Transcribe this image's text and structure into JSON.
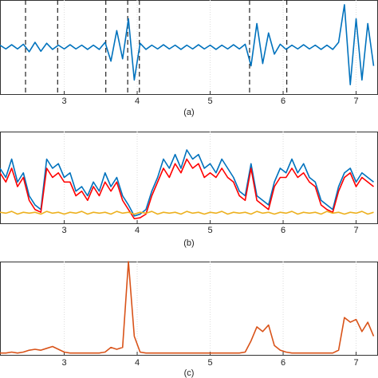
{
  "chart_data": [
    {
      "type": "line",
      "title": "(a)",
      "x": [
        2.12,
        2.2,
        2.28,
        2.36,
        2.44,
        2.52,
        2.6,
        2.68,
        2.76,
        2.84,
        2.92,
        3.0,
        3.08,
        3.16,
        3.24,
        3.32,
        3.4,
        3.48,
        3.56,
        3.64,
        3.72,
        3.8,
        3.88,
        3.96,
        4.04,
        4.12,
        4.2,
        4.28,
        4.36,
        4.44,
        4.52,
        4.6,
        4.68,
        4.76,
        4.84,
        4.92,
        5.0,
        5.08,
        5.16,
        5.24,
        5.32,
        5.4,
        5.48,
        5.56,
        5.64,
        5.72,
        5.8,
        5.88,
        5.96,
        6.04,
        6.12,
        6.2,
        6.28,
        6.36,
        6.44,
        6.52,
        6.6,
        6.68,
        6.76,
        6.84,
        6.92,
        7.0,
        7.08,
        7.16,
        7.24
      ],
      "series": [
        {
          "color": "#0072bd",
          "values": [
            0.04,
            -0.04,
            0.05,
            -0.04,
            0.06,
            -0.1,
            0.1,
            -0.09,
            0.08,
            -0.05,
            0.04,
            -0.04,
            0.05,
            -0.04,
            0.04,
            -0.05,
            0.04,
            -0.05,
            0.1,
            -0.3,
            0.35,
            -0.25,
            0.6,
            -0.7,
            0.08,
            -0.05,
            0.04,
            -0.04,
            0.05,
            -0.04,
            0.04,
            -0.05,
            0.04,
            -0.04,
            0.05,
            -0.04,
            0.04,
            -0.05,
            0.04,
            -0.04,
            0.05,
            -0.04,
            0.06,
            -0.4,
            0.5,
            -0.35,
            0.3,
            -0.15,
            0.06,
            -0.05,
            0.04,
            -0.04,
            0.05,
            -0.04,
            0.04,
            -0.05,
            0.04,
            -0.05,
            0.1,
            0.9,
            -0.8,
            0.6,
            -0.7,
            0.5,
            -0.4
          ]
        }
      ],
      "markers": [
        2.47,
        2.91,
        3.57,
        3.87,
        4.03,
        5.54,
        6.05
      ],
      "xlim": [
        2.12,
        7.3
      ],
      "ylim": [
        -1,
        1
      ],
      "xticks": [
        3,
        4,
        5,
        6,
        7
      ],
      "grid": true
    },
    {
      "type": "line",
      "title": "(b)",
      "x": [
        2.12,
        2.2,
        2.28,
        2.36,
        2.44,
        2.52,
        2.6,
        2.68,
        2.76,
        2.84,
        2.92,
        3.0,
        3.08,
        3.16,
        3.24,
        3.32,
        3.4,
        3.48,
        3.56,
        3.64,
        3.72,
        3.8,
        3.88,
        3.96,
        4.04,
        4.12,
        4.2,
        4.28,
        4.36,
        4.44,
        4.52,
        4.6,
        4.68,
        4.76,
        4.84,
        4.92,
        5.0,
        5.08,
        5.16,
        5.24,
        5.32,
        5.4,
        5.48,
        5.56,
        5.64,
        5.72,
        5.8,
        5.88,
        5.96,
        6.04,
        6.12,
        6.2,
        6.28,
        6.36,
        6.44,
        6.52,
        6.6,
        6.68,
        6.76,
        6.84,
        6.92,
        7.0,
        7.08,
        7.16,
        7.24
      ],
      "series": [
        {
          "color": "#0072bd",
          "values": [
            0.6,
            0.5,
            0.7,
            0.45,
            0.55,
            0.3,
            0.2,
            0.15,
            0.7,
            0.6,
            0.65,
            0.5,
            0.55,
            0.35,
            0.4,
            0.3,
            0.45,
            0.35,
            0.55,
            0.4,
            0.5,
            0.3,
            0.2,
            0.08,
            0.1,
            0.15,
            0.35,
            0.5,
            0.7,
            0.6,
            0.75,
            0.6,
            0.8,
            0.7,
            0.75,
            0.6,
            0.65,
            0.55,
            0.7,
            0.6,
            0.5,
            0.35,
            0.3,
            0.65,
            0.3,
            0.25,
            0.2,
            0.45,
            0.6,
            0.55,
            0.7,
            0.55,
            0.65,
            0.5,
            0.45,
            0.25,
            0.2,
            0.15,
            0.4,
            0.55,
            0.6,
            0.45,
            0.55,
            0.5,
            0.45
          ]
        },
        {
          "color": "#ff0000",
          "values": [
            0.55,
            0.45,
            0.6,
            0.4,
            0.5,
            0.25,
            0.15,
            0.12,
            0.6,
            0.5,
            0.55,
            0.45,
            0.45,
            0.3,
            0.35,
            0.25,
            0.4,
            0.3,
            0.45,
            0.35,
            0.45,
            0.25,
            0.15,
            0.05,
            0.06,
            0.1,
            0.3,
            0.45,
            0.6,
            0.5,
            0.65,
            0.55,
            0.7,
            0.6,
            0.65,
            0.5,
            0.55,
            0.5,
            0.6,
            0.5,
            0.45,
            0.3,
            0.25,
            0.6,
            0.25,
            0.2,
            0.15,
            0.4,
            0.5,
            0.5,
            0.6,
            0.5,
            0.55,
            0.45,
            0.4,
            0.2,
            0.15,
            0.12,
            0.35,
            0.5,
            0.55,
            0.4,
            0.5,
            0.45,
            0.4
          ]
        },
        {
          "color": "#edb120",
          "values": [
            0.12,
            0.11,
            0.13,
            0.1,
            0.12,
            0.11,
            0.12,
            0.1,
            0.13,
            0.11,
            0.12,
            0.1,
            0.12,
            0.11,
            0.13,
            0.1,
            0.12,
            0.11,
            0.12,
            0.1,
            0.13,
            0.11,
            0.12,
            0.1,
            0.12,
            0.11,
            0.13,
            0.1,
            0.12,
            0.11,
            0.12,
            0.1,
            0.13,
            0.11,
            0.12,
            0.1,
            0.12,
            0.11,
            0.13,
            0.1,
            0.12,
            0.11,
            0.12,
            0.1,
            0.13,
            0.11,
            0.12,
            0.1,
            0.12,
            0.11,
            0.13,
            0.1,
            0.12,
            0.11,
            0.12,
            0.1,
            0.13,
            0.11,
            0.12,
            0.1,
            0.12,
            0.11,
            0.13,
            0.1,
            0.12
          ]
        }
      ],
      "xlim": [
        2.12,
        7.3
      ],
      "ylim": [
        0,
        1
      ],
      "xticks": [
        3,
        4,
        5,
        6,
        7
      ],
      "grid": true
    },
    {
      "type": "line",
      "title": "(c)",
      "x": [
        2.12,
        2.2,
        2.28,
        2.36,
        2.44,
        2.52,
        2.6,
        2.68,
        2.76,
        2.84,
        2.92,
        3.0,
        3.08,
        3.16,
        3.24,
        3.32,
        3.4,
        3.48,
        3.56,
        3.64,
        3.72,
        3.8,
        3.88,
        3.96,
        4.04,
        4.12,
        4.2,
        4.28,
        4.36,
        4.44,
        4.52,
        4.6,
        4.68,
        4.76,
        4.84,
        4.92,
        5.0,
        5.08,
        5.16,
        5.24,
        5.32,
        5.4,
        5.48,
        5.56,
        5.64,
        5.72,
        5.8,
        5.88,
        5.96,
        6.04,
        6.12,
        6.2,
        6.28,
        6.36,
        6.44,
        6.52,
        6.6,
        6.68,
        6.76,
        6.84,
        6.92,
        7.0,
        7.08,
        7.16,
        7.24
      ],
      "series": [
        {
          "color": "#d95319",
          "values": [
            0.02,
            0.02,
            0.03,
            0.02,
            0.03,
            0.05,
            0.06,
            0.05,
            0.07,
            0.09,
            0.06,
            0.03,
            0.02,
            0.02,
            0.02,
            0.02,
            0.02,
            0.02,
            0.03,
            0.08,
            0.06,
            0.08,
            1.0,
            0.2,
            0.03,
            0.02,
            0.02,
            0.02,
            0.02,
            0.02,
            0.02,
            0.02,
            0.02,
            0.02,
            0.02,
            0.02,
            0.02,
            0.02,
            0.02,
            0.02,
            0.02,
            0.02,
            0.03,
            0.15,
            0.3,
            0.25,
            0.32,
            0.1,
            0.05,
            0.03,
            0.02,
            0.02,
            0.02,
            0.02,
            0.02,
            0.02,
            0.02,
            0.02,
            0.05,
            0.4,
            0.35,
            0.38,
            0.25,
            0.35,
            0.2
          ]
        }
      ],
      "xlim": [
        2.12,
        7.3
      ],
      "ylim": [
        0,
        1
      ],
      "xticks": [
        3,
        4,
        5,
        6,
        7
      ],
      "grid": true
    }
  ]
}
